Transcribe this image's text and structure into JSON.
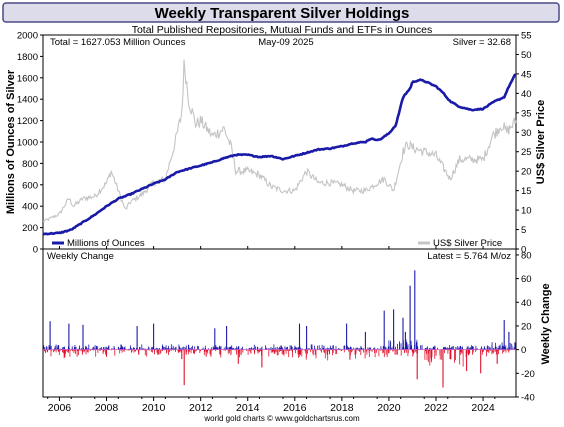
{
  "header": {
    "title": "Weekly Transparent Silver Holdings",
    "subtitle": "Total Published Repositories, Mutual Funds and ETFs in Ounces"
  },
  "top_panel": {
    "total_text": "Total = 1627.053 Million Ounces",
    "date_text": "May-09  2025",
    "price_text": "Silver = 32.68",
    "ylabel_left": "Millions of Ounces of Silver",
    "ylabel_right": "US$ Silver Price",
    "legend_holdings": "Millions of Ounces",
    "legend_price": "US$ Silver Price"
  },
  "bottom_panel": {
    "label": "Weekly Change",
    "latest_text": "Latest = 5.764 M/oz",
    "ylabel_right": "Weekly Change"
  },
  "footer": {
    "text": "world gold charts © www.goldchartsrus.com"
  },
  "colors": {
    "holdings": "#1a1aa8",
    "price": "#c4c4c4",
    "positive_change": "#1a1aa8",
    "negative_change": "#e0102a",
    "title_band": "#dcdcea",
    "panel_border": "#000000"
  },
  "chart_data": [
    {
      "type": "line",
      "title": "Weekly Transparent Silver Holdings",
      "xlabel": "",
      "ylabel": "Millions of Ounces of Silver",
      "y2label": "US$ Silver Price",
      "xlim": [
        2005.3,
        2025.4
      ],
      "ylim": [
        0,
        2000
      ],
      "y2lim": [
        0,
        55
      ],
      "x_ticks": [
        "2006",
        "2008",
        "2010",
        "2012",
        "2014",
        "2016",
        "2018",
        "2020",
        "2022",
        "2024"
      ],
      "y_ticks": [
        0,
        200,
        400,
        600,
        800,
        1000,
        1200,
        1400,
        1600,
        1800,
        2000
      ],
      "y2_ticks": [
        0,
        5,
        10,
        15,
        20,
        25,
        30,
        35,
        40,
        45,
        50,
        55
      ],
      "grid": false,
      "legend": "bottom",
      "series": [
        {
          "name": "Millions of Ounces",
          "axis": "left",
          "x": [
            2005.3,
            2006.0,
            2006.5,
            2007.0,
            2007.5,
            2008.0,
            2008.5,
            2009.0,
            2009.5,
            2010.0,
            2010.5,
            2011.0,
            2011.5,
            2012.0,
            2012.5,
            2013.0,
            2013.5,
            2014.0,
            2014.5,
            2015.0,
            2015.5,
            2016.0,
            2016.5,
            2017.0,
            2017.5,
            2018.0,
            2018.5,
            2019.0,
            2019.2,
            2019.6,
            2020.0,
            2020.3,
            2020.6,
            2020.9,
            2021.0,
            2021.3,
            2021.5,
            2022.0,
            2022.3,
            2022.6,
            2023.0,
            2023.5,
            2024.0,
            2024.5,
            2024.9,
            2025.1,
            2025.36
          ],
          "y": [
            140,
            150,
            180,
            250,
            320,
            400,
            470,
            510,
            560,
            610,
            650,
            720,
            750,
            780,
            810,
            850,
            880,
            880,
            860,
            870,
            840,
            870,
            900,
            930,
            940,
            960,
            990,
            1000,
            1030,
            1020,
            1080,
            1160,
            1420,
            1500,
            1560,
            1580,
            1570,
            1520,
            1460,
            1380,
            1330,
            1300,
            1310,
            1380,
            1420,
            1520,
            1627
          ]
        },
        {
          "name": "US$ Silver Price",
          "axis": "right",
          "x": [
            2005.3,
            2006.0,
            2006.4,
            2006.6,
            2007.0,
            2007.5,
            2008.0,
            2008.2,
            2008.8,
            2009.0,
            2009.5,
            2010.0,
            2010.5,
            2010.9,
            2011.2,
            2011.3,
            2011.5,
            2011.8,
            2012.0,
            2012.5,
            2013.0,
            2013.3,
            2013.5,
            2014.0,
            2014.5,
            2015.0,
            2015.5,
            2016.0,
            2016.5,
            2017.0,
            2017.5,
            2018.0,
            2018.5,
            2019.0,
            2019.5,
            2019.8,
            2020.2,
            2020.6,
            2020.8,
            2021.0,
            2021.5,
            2022.0,
            2022.6,
            2023.0,
            2023.5,
            2024.0,
            2024.4,
            2024.8,
            2025.0,
            2025.36
          ],
          "y": [
            7,
            9,
            13,
            11,
            13,
            13.5,
            17,
            20,
            10,
            12,
            14,
            17,
            18,
            27,
            35,
            48,
            38,
            32,
            33,
            29,
            31,
            26,
            20,
            20,
            19,
            16,
            15,
            15,
            20,
            17,
            17,
            16.5,
            15,
            15,
            17,
            18,
            15,
            25,
            27,
            26,
            25,
            24,
            18,
            23,
            23,
            23,
            29,
            32,
            30,
            32.68
          ]
        }
      ]
    },
    {
      "type": "bar",
      "title": "Weekly Change",
      "xlabel": "",
      "ylabel": "Weekly Change",
      "xlim": [
        2005.3,
        2025.4
      ],
      "ylim": [
        -40,
        85
      ],
      "y_ticks": [
        -40,
        -20,
        0,
        20,
        40,
        60,
        80
      ],
      "grid": false,
      "generated": {
        "pos_count": 1000,
        "pos_sum": 1487,
        "neg_count": 600,
        "neg_sum": -1380
      },
      "series": [
        {
          "name": "Weekly Change",
          "x": [
            2005.6,
            2006.4,
            2007.0,
            2008.0,
            2009.3,
            2010.0,
            2011.2,
            2011.3,
            2012.6,
            2013.1,
            2013.6,
            2014.6,
            2016.2,
            2016.5,
            2018.2,
            2019.0,
            2019.8,
            2020.2,
            2020.6,
            2020.7,
            2020.9,
            2021.1,
            2021.2,
            2022.3,
            2022.6,
            2023.3,
            2023.9,
            2024.6,
            2024.9,
            2025.1,
            2025.36
          ],
          "y": [
            24,
            22,
            21,
            -6,
            20,
            22,
            -8,
            -30,
            18,
            20,
            -12,
            -15,
            22,
            20,
            22,
            15,
            33,
            34,
            27,
            15,
            54,
            67,
            -25,
            -32,
            -8,
            -18,
            -20,
            -12,
            25,
            15,
            5.764
          ]
        }
      ]
    }
  ]
}
